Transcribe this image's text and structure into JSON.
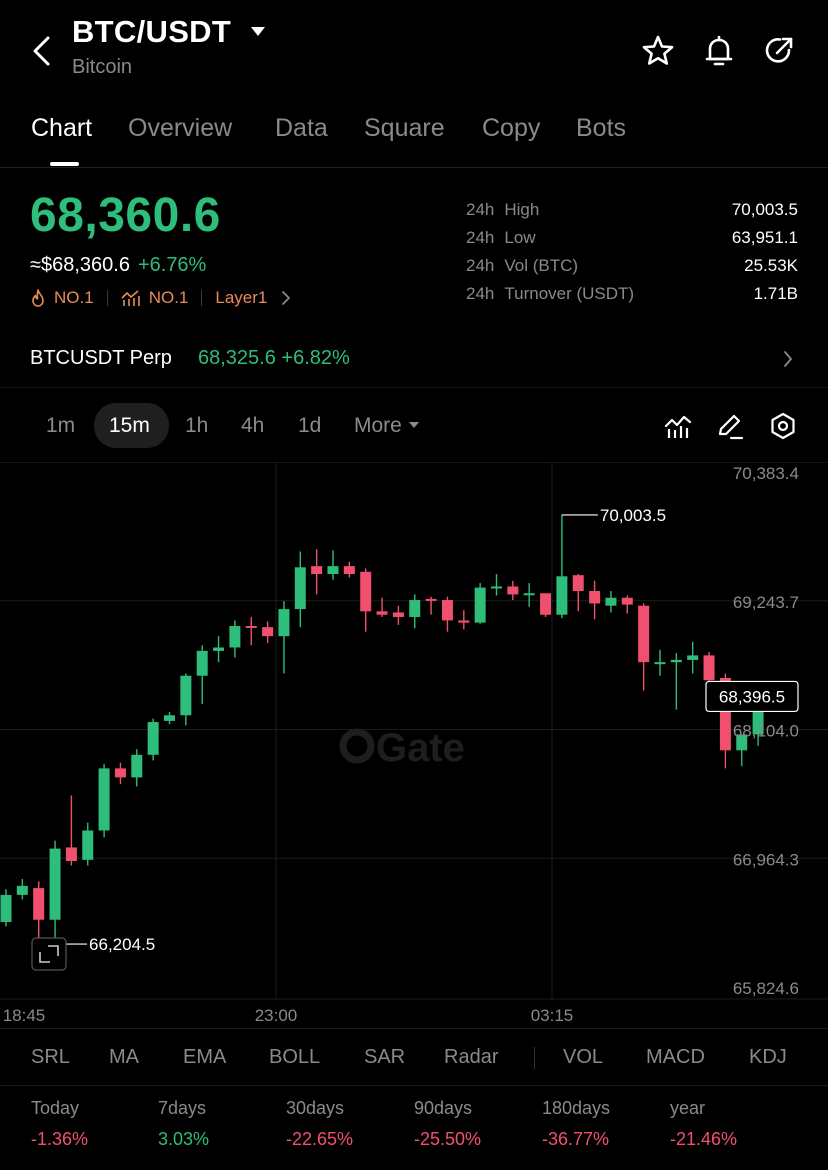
{
  "header": {
    "pair": "BTC/USDT",
    "name": "Bitcoin"
  },
  "tabs": [
    "Chart",
    "Overview",
    "Data",
    "Square",
    "Copy",
    "Bots"
  ],
  "price": {
    "last": "68,360.6",
    "usd": "≈$68,360.6",
    "change": "+6.76%",
    "badges": [
      "NO.1",
      "NO.1",
      "Layer1"
    ]
  },
  "stats": [
    {
      "period": "24h",
      "label": "High",
      "value": "70,003.5"
    },
    {
      "period": "24h",
      "label": "Low",
      "value": "63,951.1"
    },
    {
      "period": "24h",
      "label": "Vol (BTC)",
      "value": "25.53K"
    },
    {
      "period": "24h",
      "label": "Turnover (USDT)",
      "value": "1.71B"
    }
  ],
  "perp": {
    "name": "BTCUSDT Perp",
    "price": "68,325.6",
    "change": "+6.82%"
  },
  "intervals": [
    "1m",
    "15m",
    "1h",
    "4h",
    "1d",
    "More"
  ],
  "chart_data": {
    "type": "candlestick",
    "y_ticks": [
      "70,383.4",
      "69,243.7",
      "68,104.0",
      "66,964.3",
      "65,824.6"
    ],
    "ylim": [
      65824.6,
      70383.4
    ],
    "x_ticks": [
      "18:45",
      "23:00",
      "03:15"
    ],
    "high_marker": "70,003.5",
    "low_marker": "66,204.5",
    "last_marker": "68,396.5",
    "watermark": "Gate",
    "colors": {
      "up": "#2ebd7a",
      "down": "#f0506e"
    },
    "candles": [
      [
        66400,
        66640,
        66360,
        66690
      ],
      [
        66640,
        66720,
        66600,
        66780
      ],
      [
        66700,
        66420,
        66230,
        66760
      ],
      [
        66420,
        67050,
        66204.5,
        67120
      ],
      [
        67060,
        66940,
        66900,
        67520
      ],
      [
        66950,
        67210,
        66900,
        67280
      ],
      [
        67210,
        67760,
        67150,
        67800
      ],
      [
        67760,
        67680,
        67620,
        67810
      ],
      [
        67680,
        67880,
        67600,
        67930
      ],
      [
        67880,
        68170,
        67830,
        68200
      ],
      [
        68180,
        68230,
        68150,
        68260
      ],
      [
        68230,
        68580,
        68140,
        68600
      ],
      [
        68580,
        68800,
        68330,
        68850
      ],
      [
        68800,
        68830,
        68700,
        68930
      ],
      [
        68830,
        69020,
        68740,
        69070
      ],
      [
        69020,
        69010,
        68850,
        69100
      ],
      [
        69010,
        68930,
        68870,
        69060
      ],
      [
        68930,
        69170,
        68600,
        69240
      ],
      [
        69170,
        69540,
        69010,
        69680
      ],
      [
        69550,
        69480,
        69300,
        69700
      ],
      [
        69480,
        69550,
        69430,
        69690
      ],
      [
        69550,
        69480,
        69450,
        69590
      ],
      [
        69500,
        69150,
        68970,
        69530
      ],
      [
        69150,
        69120,
        69100,
        69270
      ],
      [
        69140,
        69100,
        69030,
        69200
      ],
      [
        69100,
        69250,
        69000,
        69300
      ],
      [
        69260,
        69250,
        69120,
        69280
      ],
      [
        69250,
        69070,
        68970,
        69280
      ],
      [
        69070,
        69050,
        68990,
        69160
      ],
      [
        69050,
        69360,
        69040,
        69400
      ],
      [
        69370,
        69370,
        69290,
        69480
      ],
      [
        69370,
        69300,
        69250,
        69420
      ],
      [
        69310,
        69310,
        69190,
        69400
      ],
      [
        69310,
        69120,
        69100,
        69290
      ],
      [
        69120,
        69460,
        69090,
        70003.5
      ],
      [
        69470,
        69330,
        69150,
        69480
      ],
      [
        69330,
        69220,
        69080,
        69420
      ],
      [
        69200,
        69270,
        69140,
        69330
      ],
      [
        69270,
        69210,
        69130,
        69290
      ],
      [
        69200,
        68700,
        68450,
        69220
      ],
      [
        68700,
        68700,
        68580,
        68810
      ],
      [
        68700,
        68720,
        68280,
        68780
      ],
      [
        68720,
        68760,
        68600,
        68880
      ],
      [
        68760,
        68540,
        68400,
        68790
      ],
      [
        68560,
        67920,
        67760,
        68600
      ],
      [
        67920,
        68060,
        67780,
        68060
      ],
      [
        68060,
        68290,
        67960,
        68290
      ],
      [
        68290,
        68396.5,
        68280,
        68420
      ]
    ]
  },
  "indicators": [
    "SRL",
    "MA",
    "EMA",
    "BOLL",
    "SAR",
    "Radar",
    "VOL",
    "MACD",
    "KDJ"
  ],
  "performance": [
    {
      "label": "Today",
      "value": "-1.36%"
    },
    {
      "label": "7days",
      "value": "3.03%"
    },
    {
      "label": "30days",
      "value": "-22.65%"
    },
    {
      "label": "90days",
      "value": "-25.50%"
    },
    {
      "label": "180days",
      "value": "-36.77%"
    },
    {
      "label": "year",
      "value": "-21.46%"
    }
  ]
}
